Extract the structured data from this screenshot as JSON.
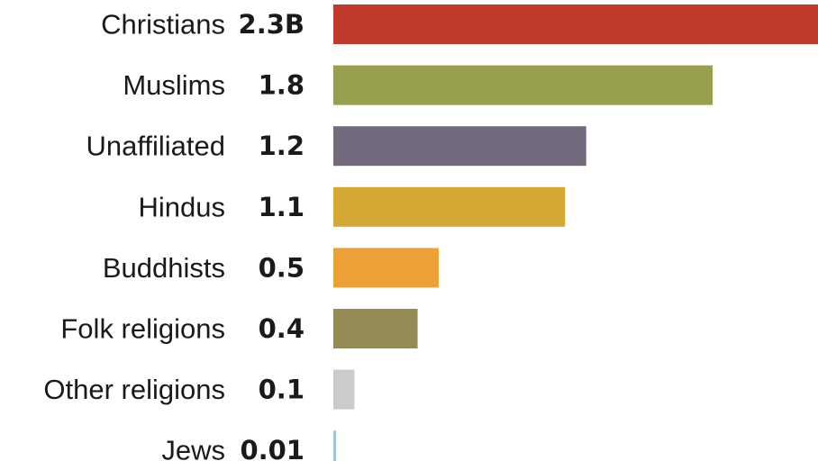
{
  "chart_data": {
    "type": "bar",
    "orientation": "horizontal",
    "title": "",
    "xlabel": "",
    "ylabel": "",
    "grid": false,
    "legend": "none",
    "categories": [
      "Christians",
      "Muslims",
      "Unaffiliated",
      "Hindus",
      "Buddhists",
      "Folk religions",
      "Other religions",
      "Jews"
    ],
    "values": [
      2.3,
      1.8,
      1.2,
      1.1,
      0.5,
      0.4,
      0.1,
      0.01
    ],
    "value_labels": [
      "2.3B",
      "1.8",
      "1.2",
      "1.1",
      "0.5",
      "0.4",
      "0.1",
      "0.01"
    ],
    "unit": "billions",
    "colors": [
      "#c0392b",
      "#98a04e",
      "#736a7e",
      "#d4a933",
      "#eca137",
      "#958b56",
      "#c9cbcd",
      "#9fc7e2"
    ],
    "xlim": [
      0,
      2.3
    ]
  }
}
